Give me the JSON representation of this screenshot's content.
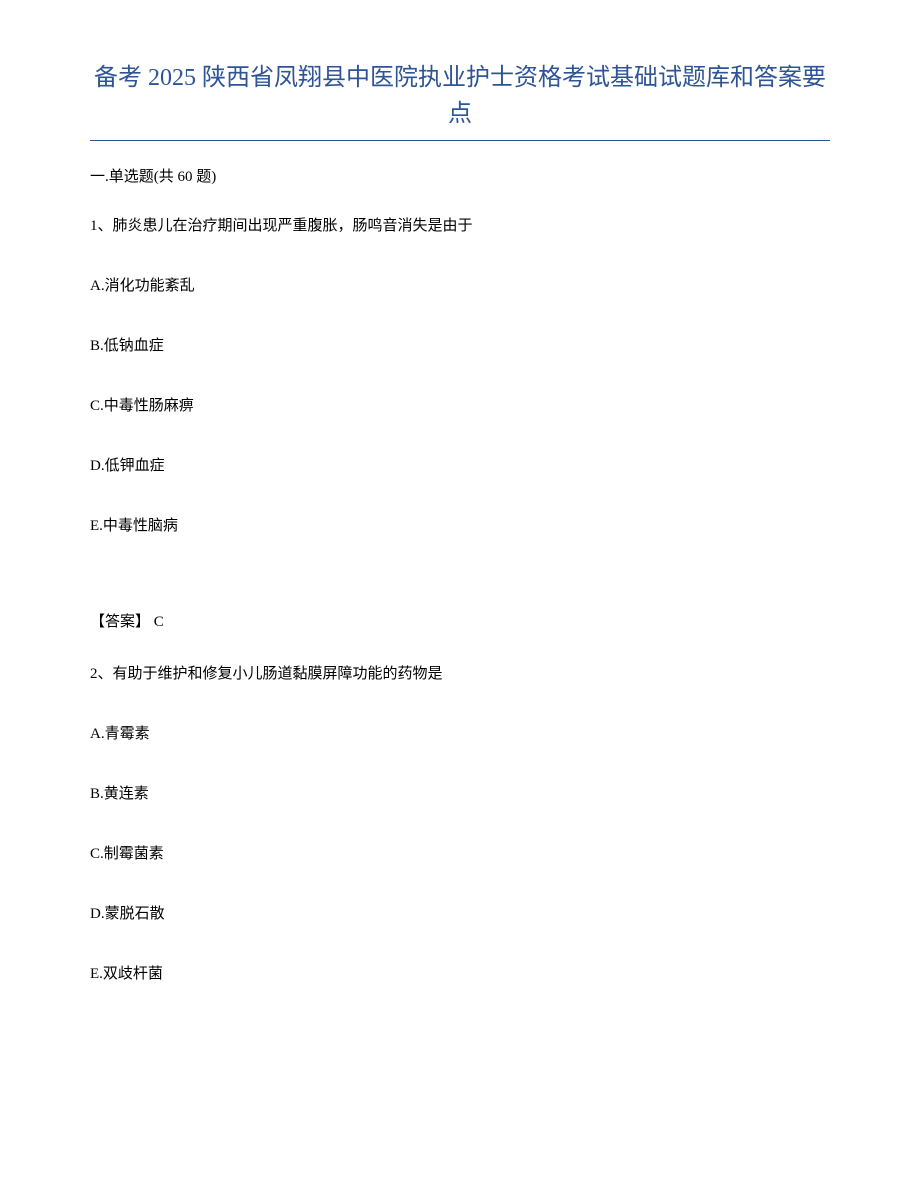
{
  "title": "备考 2025 陕西省凤翔县中医院执业护士资格考试基础试题库和答案要点",
  "section_header": "一.单选题(共 60 题)",
  "questions": [
    {
      "number": "1、",
      "text": "肺炎患儿在治疗期间出现严重腹胀，肠鸣音消失是由于",
      "options": [
        "A.消化功能紊乱",
        "B.低钠血症",
        "C.中毒性肠麻痹",
        "D.低钾血症",
        "E.中毒性脑病"
      ],
      "answer": "【答案】 C"
    },
    {
      "number": "2、",
      "text": "有助于维护和修复小儿肠道黏膜屏障功能的药物是",
      "options": [
        "A.青霉素",
        "B.黄连素",
        "C.制霉菌素",
        "D.蒙脱石散",
        "E.双歧杆菌"
      ],
      "answer": ""
    }
  ],
  "styling": {
    "title_color": "#2e5496",
    "title_fontsize": 24,
    "body_fontsize": 15,
    "text_color": "#000000",
    "background_color": "#ffffff",
    "border_color": "#2e5496",
    "font_family": "SimSun"
  }
}
